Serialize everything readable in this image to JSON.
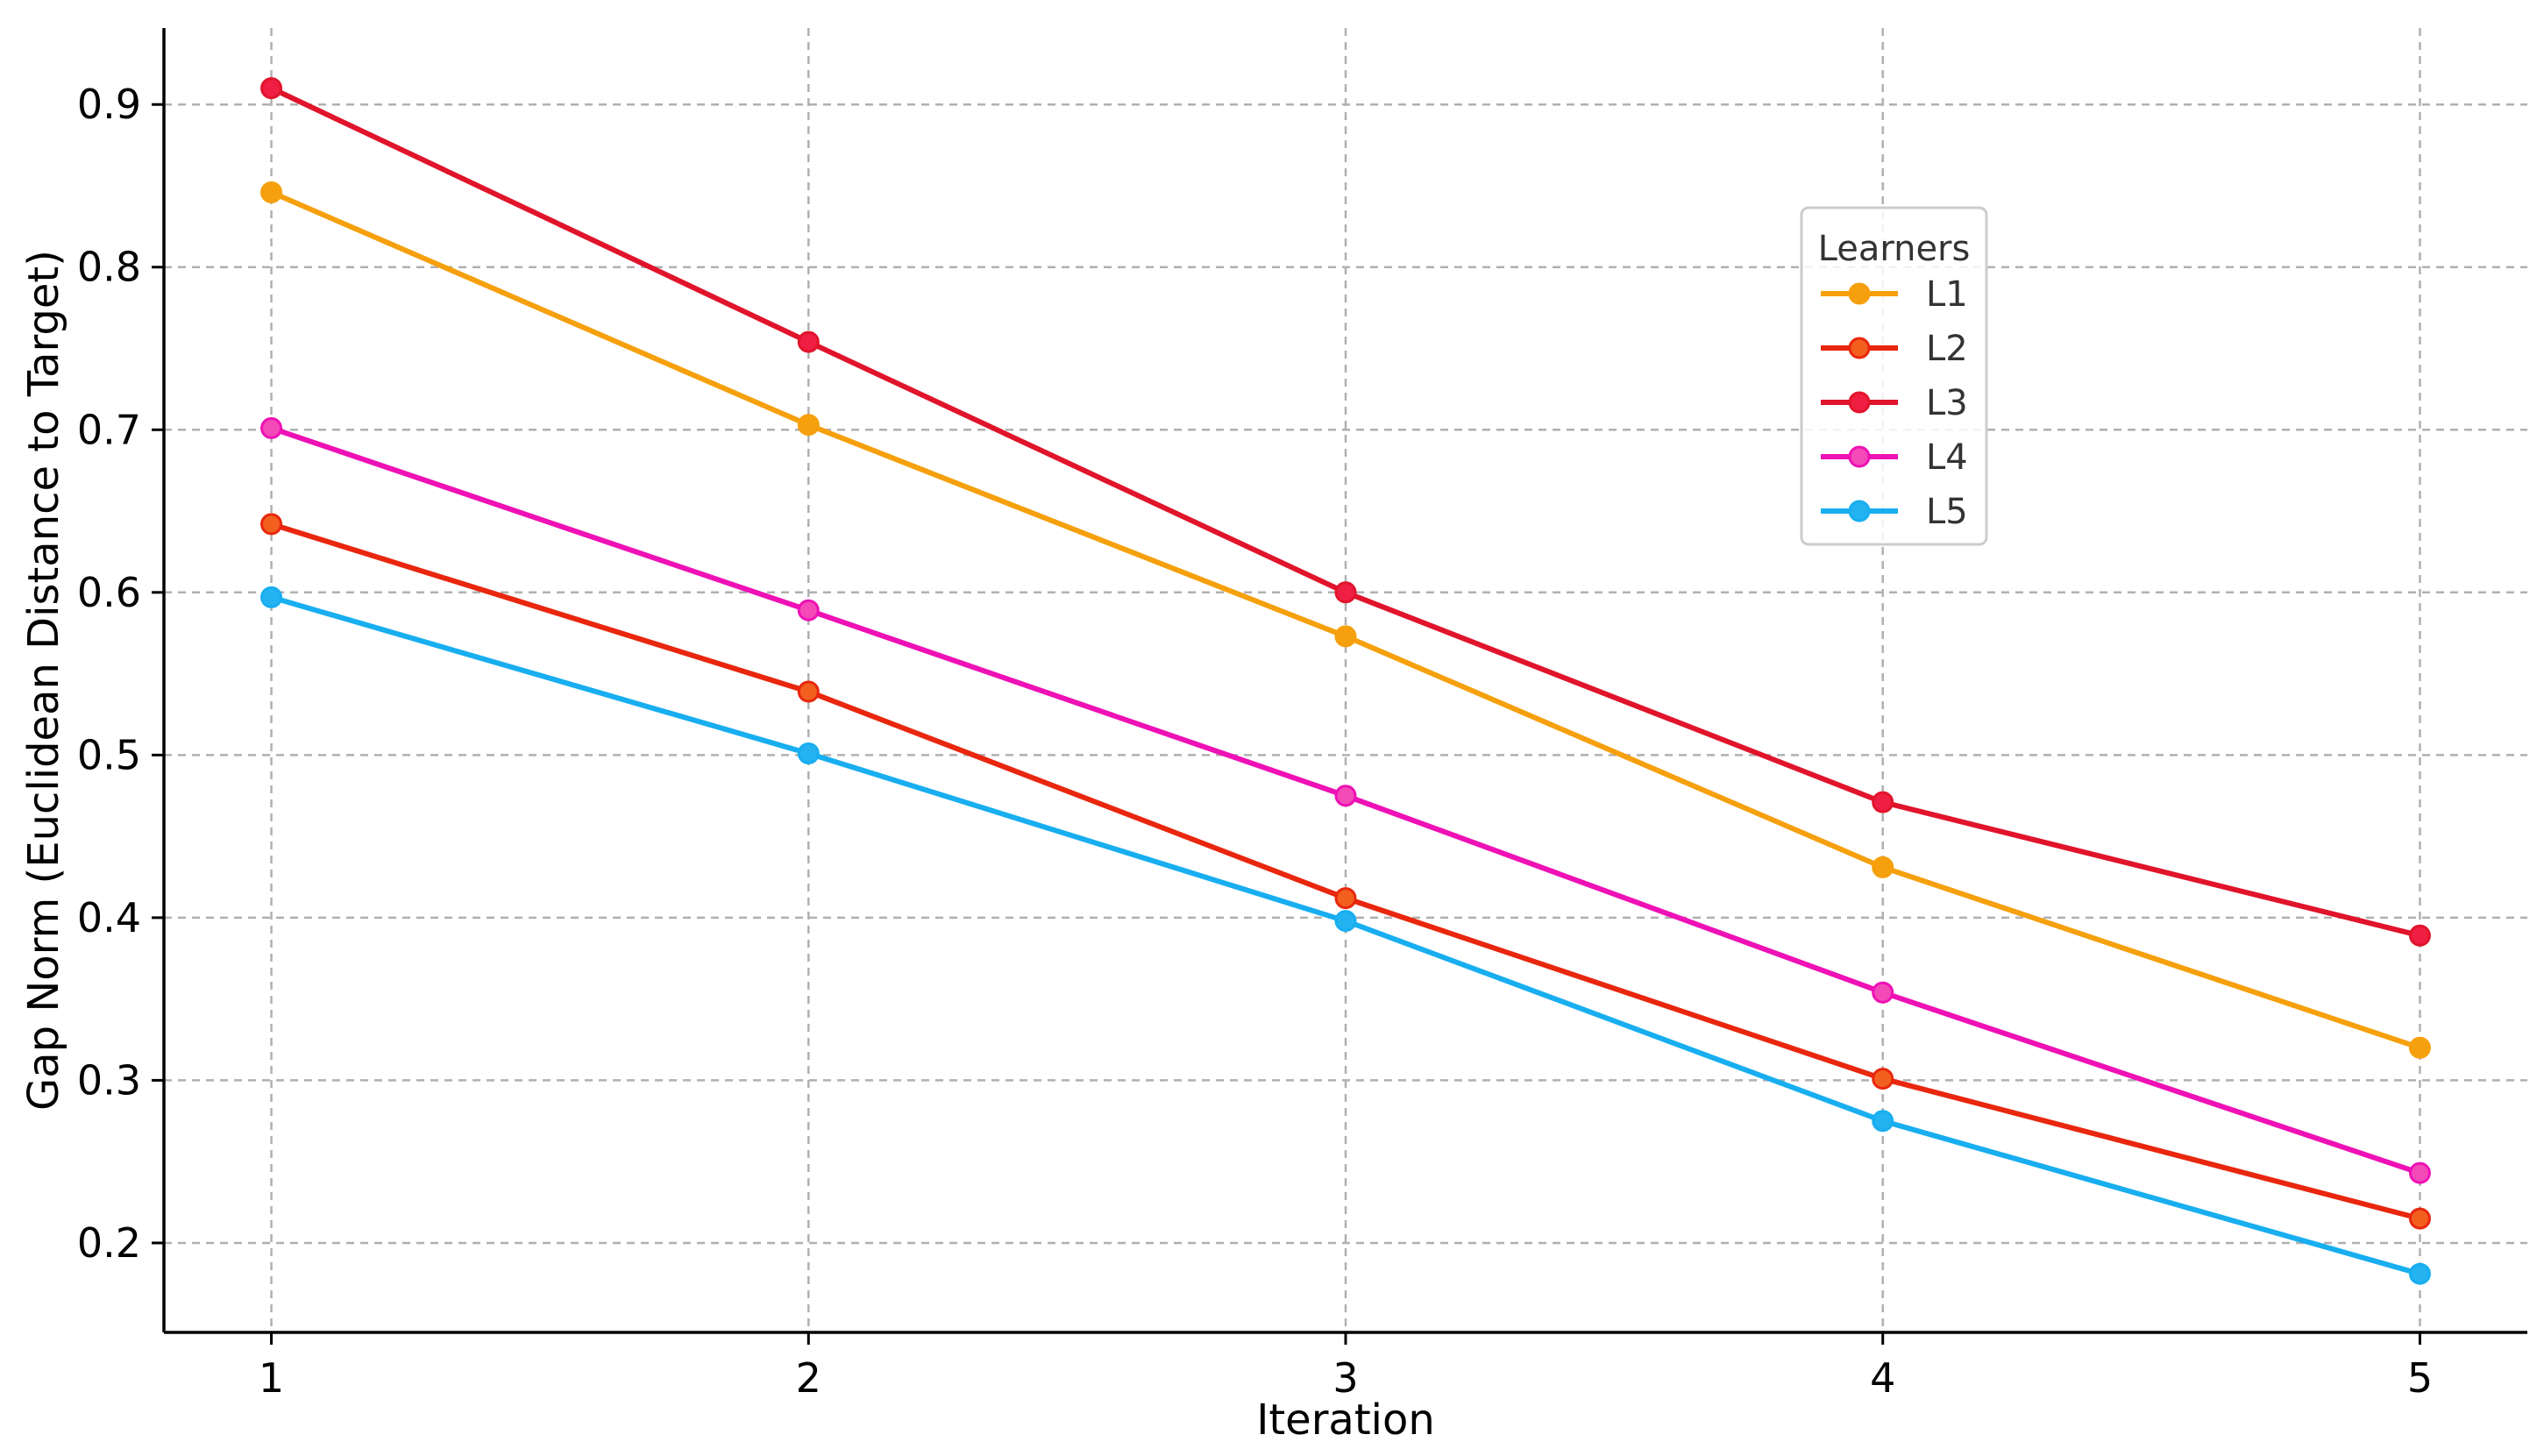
{
  "chart_data": {
    "type": "line",
    "title": "",
    "xlabel": "Iteration",
    "ylabel": "Gap Norm (Euclidean Distance to Target)",
    "x": [
      1,
      2,
      3,
      4,
      5
    ],
    "xlim": [
      0.8,
      5.2
    ],
    "ylim": [
      0.145,
      0.947
    ],
    "xticks": [
      1,
      2,
      3,
      4,
      5
    ],
    "yticks": [
      0.2,
      0.3,
      0.4,
      0.5,
      0.6,
      0.7,
      0.8,
      0.9
    ],
    "grid": true,
    "grid_style": "dashed",
    "legend": {
      "title": "Learners",
      "placement": "upper-right-inner"
    },
    "series": [
      {
        "name": "L1",
        "color": "#f5a00c",
        "values": [
          0.846,
          0.703,
          0.573,
          0.431,
          0.32
        ]
      },
      {
        "name": "L2",
        "color": "#e8270e",
        "marker_color": "#f25f1f",
        "values": [
          0.642,
          0.539,
          0.412,
          0.301,
          0.215
        ]
      },
      {
        "name": "L3",
        "color": "#e0142b",
        "marker_color": "#ee1f42",
        "values": [
          0.91,
          0.754,
          0.6,
          0.471,
          0.389
        ]
      },
      {
        "name": "L4",
        "color": "#ee11b5",
        "marker_color": "#f44ab8",
        "values": [
          0.701,
          0.589,
          0.475,
          0.354,
          0.243
        ]
      },
      {
        "name": "L5",
        "color": "#18aef0",
        "marker_color": "#24b2f0",
        "values": [
          0.597,
          0.501,
          0.398,
          0.275,
          0.181
        ]
      }
    ]
  }
}
